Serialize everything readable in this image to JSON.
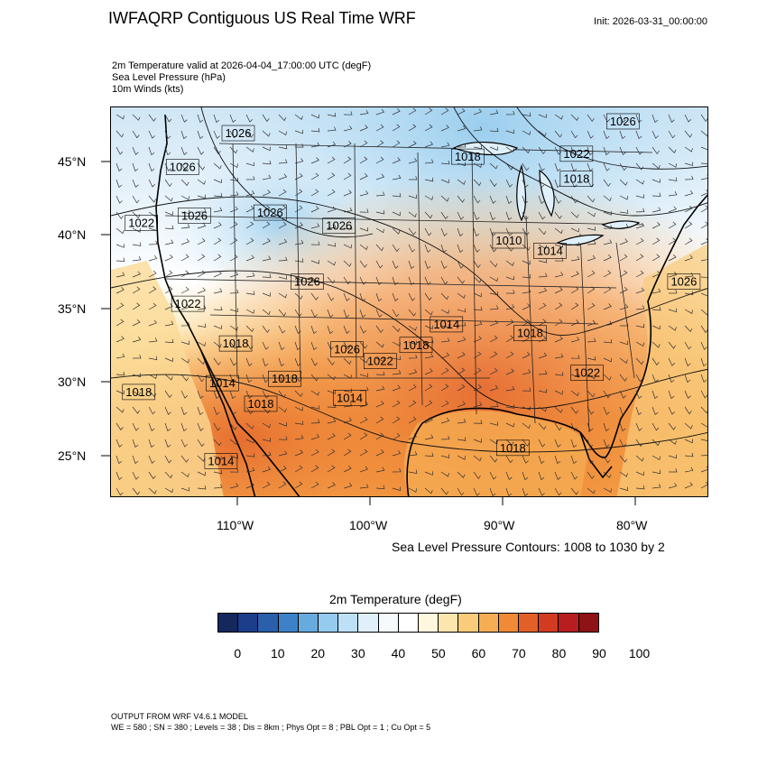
{
  "header": {
    "title": "IWFAQRP Contiguous US Real Time WRF",
    "init": "Init: 2026-03-31_00:00:00",
    "subtitle_lines": [
      "2m Temperature valid at 2026-04-04_17:00:00 UTC   (degF)",
      "Sea Level Pressure   (hPa)",
      "10m Winds   (kts)"
    ]
  },
  "map": {
    "lat_labels": [
      "45°N",
      "40°N",
      "35°N",
      "30°N",
      "25°N"
    ],
    "lon_labels": [
      "110°W",
      "100°W",
      "90°W",
      "80°W"
    ],
    "slp_labels": [
      {
        "text": "1026",
        "lon": -110.0,
        "lat": 46.9
      },
      {
        "text": "1026",
        "lon": -114.2,
        "lat": 44.6
      },
      {
        "text": "1022",
        "lon": -117.3,
        "lat": 40.8
      },
      {
        "text": "1026",
        "lon": -113.3,
        "lat": 41.3
      },
      {
        "text": "1026",
        "lon": -107.6,
        "lat": 41.5
      },
      {
        "text": "1026",
        "lon": -102.4,
        "lat": 40.6
      },
      {
        "text": "1026",
        "lon": -104.8,
        "lat": 36.8
      },
      {
        "text": "1022",
        "lon": -113.8,
        "lat": 35.3
      },
      {
        "text": "1018",
        "lon": -110.2,
        "lat": 32.6
      },
      {
        "text": "1014",
        "lon": -111.2,
        "lat": 29.9
      },
      {
        "text": "1018",
        "lon": -117.5,
        "lat": 29.3
      },
      {
        "text": "1018",
        "lon": -106.5,
        "lat": 30.2
      },
      {
        "text": "1018",
        "lon": -108.3,
        "lat": 28.5
      },
      {
        "text": "1014",
        "lon": -101.6,
        "lat": 28.9
      },
      {
        "text": "1026",
        "lon": -101.8,
        "lat": 32.2
      },
      {
        "text": "1022",
        "lon": -99.3,
        "lat": 31.4
      },
      {
        "text": "1018",
        "lon": -96.6,
        "lat": 32.5
      },
      {
        "text": "1014",
        "lon": -94.3,
        "lat": 33.9
      },
      {
        "text": "1018",
        "lon": -88.0,
        "lat": 33.3
      },
      {
        "text": "1022",
        "lon": -83.7,
        "lat": 30.6
      },
      {
        "text": "1018",
        "lon": -89.3,
        "lat": 25.5
      },
      {
        "text": "1014",
        "lon": -111.3,
        "lat": 24.6
      },
      {
        "text": "1010",
        "lon": -89.6,
        "lat": 39.6
      },
      {
        "text": "1014",
        "lon": -86.5,
        "lat": 38.9
      },
      {
        "text": "1018",
        "lon": -92.7,
        "lat": 45.3
      },
      {
        "text": "1022",
        "lon": -84.5,
        "lat": 45.5
      },
      {
        "text": "1018",
        "lon": -84.5,
        "lat": 43.8
      },
      {
        "text": "1026",
        "lon": -81.0,
        "lat": 47.7
      },
      {
        "text": "1026",
        "lon": -76.4,
        "lat": 36.8
      }
    ]
  },
  "contour_note": "Sea Level Pressure Contours: 1008 to 1030 by 2",
  "legend": {
    "title": "2m Temperature  (degF)",
    "colors": [
      "#14285e",
      "#1c3d8a",
      "#2a5fac",
      "#3d82c8",
      "#67abde",
      "#94cbee",
      "#bde0f6",
      "#dff0fa",
      "#f5fafd",
      "#ffffff",
      "#fff8de",
      "#fde6ad",
      "#f9cc7c",
      "#f6ae54",
      "#f08a36",
      "#e35f28",
      "#d23b22",
      "#b81e20",
      "#8f1216"
    ],
    "ticks": [
      "0",
      "10",
      "20",
      "30",
      "40",
      "50",
      "60",
      "70",
      "80",
      "90",
      "100"
    ]
  },
  "footer": {
    "line1": "OUTPUT FROM WRF V4.6.1 MODEL",
    "line2": "WE = 580 ; SN = 380 ; Levels = 38 ; Dis = 8km ; Phys Opt = 8 ; PBL Opt = 1 ; Cu Opt = 5"
  }
}
